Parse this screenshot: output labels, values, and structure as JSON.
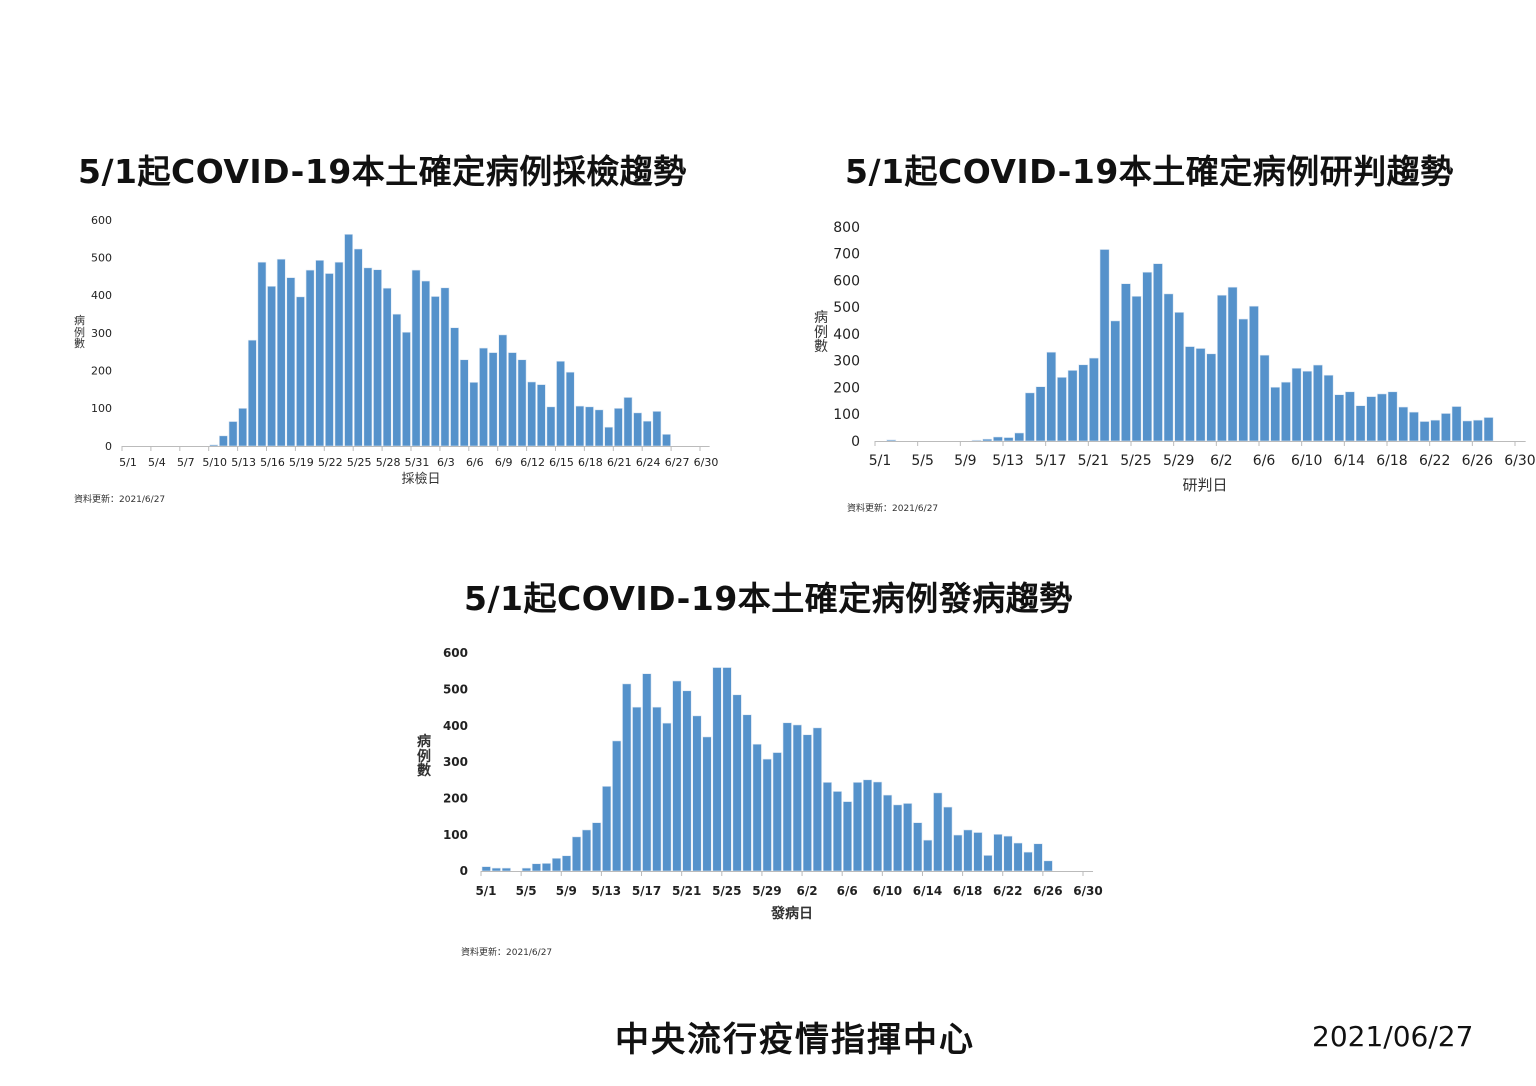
{
  "charts_titles": [
    "5/1起COVID-19本土確定病例採檢趨勢",
    "5/1起COVID-19本土確定病例研判趨勢",
    "5/1起COVID-19本土確定病例發病趨勢"
  ],
  "footer": {
    "org": "中央流行疫情指揮中心",
    "date": "2021/06/27"
  },
  "chart_data": [
    {
      "type": "bar",
      "title": "5/1起COVID-19本土確定病例採檢趨勢",
      "xlabel": "採檢日",
      "ylabel": "病例數",
      "ylim": [
        0,
        600
      ],
      "yticks": [
        "0",
        "100",
        "200",
        "300",
        "400",
        "500",
        "600"
      ],
      "xticks": [
        "5/1",
        "5/4",
        "5/7",
        "5/10",
        "5/13",
        "5/16",
        "5/19",
        "5/22",
        "5/25",
        "5/28",
        "5/31",
        "6/3",
        "6/6",
        "6/9",
        "6/12",
        "6/15",
        "6/18",
        "6/21",
        "6/24",
        "6/27",
        "6/30"
      ],
      "x_start": "5/1",
      "values": [
        0,
        0,
        0,
        0,
        0,
        0,
        0,
        0,
        0,
        3,
        27,
        65,
        100,
        281,
        488,
        424,
        496,
        447,
        396,
        467,
        493,
        458,
        488,
        562,
        523,
        473,
        468,
        419,
        350,
        302,
        467,
        438,
        397,
        420,
        314,
        229,
        169,
        260,
        248,
        295,
        248,
        229,
        170,
        163,
        104,
        225,
        196,
        106,
        104,
        96,
        50,
        100,
        129,
        88,
        66,
        92,
        31,
        0,
        0,
        0,
        0
      ],
      "note": "資料更新：2021/6/27",
      "color": "#5592cb"
    },
    {
      "type": "bar",
      "title": "5/1起COVID-19本土確定病例研判趨勢",
      "xlabel": "研判日",
      "ylabel": "病例數",
      "ylim": [
        0,
        800
      ],
      "yticks": [
        "0",
        "100",
        "200",
        "300",
        "400",
        "500",
        "600",
        "700",
        "800"
      ],
      "xticks": [
        "5/1",
        "5/5",
        "5/9",
        "5/13",
        "5/17",
        "5/21",
        "5/25",
        "5/29",
        "6/2",
        "6/6",
        "6/10",
        "6/14",
        "6/18",
        "6/22",
        "6/26",
        "6/30"
      ],
      "x_start": "5/1",
      "values": [
        0,
        4,
        0,
        0,
        0,
        0,
        0,
        0,
        0,
        3,
        7,
        15,
        13,
        30,
        180,
        203,
        332,
        238,
        264,
        285,
        310,
        716,
        449,
        588,
        541,
        631,
        663,
        550,
        481,
        353,
        346,
        326,
        545,
        575,
        456,
        504,
        321,
        201,
        220,
        272,
        261,
        284,
        246,
        173,
        184,
        132,
        166,
        176,
        184,
        127,
        108,
        73,
        78,
        103,
        129,
        75,
        78,
        88,
        0,
        0,
        0
      ],
      "note": "資料更新：2021/6/27",
      "color": "#5592cb"
    },
    {
      "type": "bar",
      "title": "5/1起COVID-19本土確定病例發病趨勢",
      "xlabel": "發病日",
      "ylabel": "病例數",
      "ylim": [
        0,
        600
      ],
      "yticks": [
        "0",
        "100",
        "200",
        "300",
        "400",
        "500",
        "600"
      ],
      "xticks": [
        "5/1",
        "5/5",
        "5/9",
        "5/13",
        "5/17",
        "5/21",
        "5/25",
        "5/29",
        "6/2",
        "6/6",
        "6/10",
        "6/14",
        "6/18",
        "6/22",
        "6/26",
        "6/30"
      ],
      "x_start": "5/1",
      "values": [
        12,
        8,
        8,
        0,
        8,
        20,
        21,
        35,
        42,
        94,
        113,
        133,
        233,
        358,
        515,
        451,
        543,
        451,
        407,
        523,
        496,
        427,
        369,
        560,
        560,
        485,
        430,
        349,
        308,
        326,
        408,
        402,
        375,
        394,
        244,
        219,
        191,
        244,
        251,
        245,
        209,
        182,
        186,
        133,
        85,
        215,
        176,
        99,
        113,
        106,
        43,
        101,
        96,
        77,
        52,
        75,
        28,
        0,
        0,
        0,
        0
      ],
      "note": "資料更新：2021/6/27",
      "color": "#5592cb"
    }
  ]
}
